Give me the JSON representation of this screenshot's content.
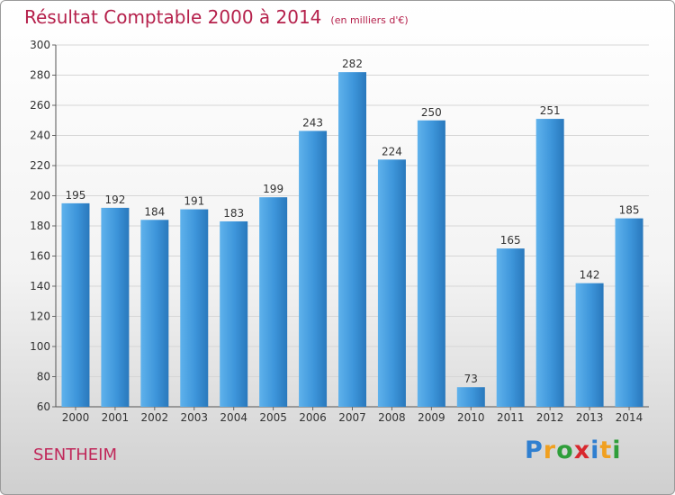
{
  "title": "Résultat Comptable 2000 à 2014",
  "unit_note": "(en milliers d'€)",
  "place": "SENTHEIM",
  "logo": {
    "letters": [
      "P",
      "r",
      "o",
      "x",
      "i",
      "t",
      "i"
    ],
    "colors": [
      "#2f7fd0",
      "#f0a020",
      "#2f9e3a",
      "#d8282e",
      "#2f7fd0",
      "#f0a020",
      "#2f9e3a"
    ]
  },
  "colors": {
    "bar": "#3d95da",
    "bar_light": "#5fb2ec",
    "bar_dark": "#2978bc",
    "title": "#b5204b"
  },
  "chart_data": {
    "type": "bar",
    "categories": [
      "2000",
      "2001",
      "2002",
      "2003",
      "2004",
      "2005",
      "2006",
      "2007",
      "2008",
      "2009",
      "2010",
      "2011",
      "2012",
      "2013",
      "2014"
    ],
    "values": [
      195,
      192,
      184,
      191,
      183,
      199,
      243,
      282,
      224,
      250,
      73,
      165,
      251,
      142,
      185
    ],
    "ylim": [
      60,
      300
    ],
    "yticks": [
      60,
      80,
      100,
      120,
      140,
      160,
      180,
      200,
      220,
      240,
      260,
      280,
      300
    ],
    "grid": true,
    "xlabel": "",
    "ylabel": ""
  }
}
